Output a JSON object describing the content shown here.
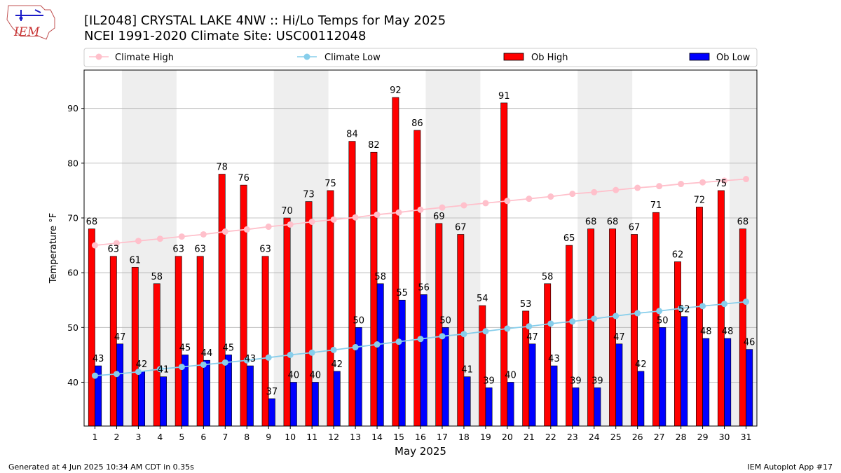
{
  "header": {
    "logo_text": "IEM",
    "title_line1": "[IL2048] CRYSTAL LAKE 4NW :: Hi/Lo Temps for May 2025",
    "title_line2": "NCEI 1991-2020 Climate Site: USC00112048"
  },
  "legend": {
    "climate_high": "Climate High",
    "climate_low": "Climate Low",
    "ob_high": "Ob High",
    "ob_low": "Ob Low"
  },
  "footer": {
    "generated": "Generated at 4 Jun 2025 10:34 AM CDT in 0.35s",
    "app": "IEM Autoplot App #17"
  },
  "colors": {
    "ob_high": "#ff0000",
    "ob_low": "#0000ff",
    "climate_high": "#ffc0cb",
    "climate_low": "#87ceeb",
    "weekend_shade": "#eeeeee",
    "grid": "#b0b0b0"
  },
  "chart_data": {
    "type": "bar",
    "xlabel": "May 2025",
    "ylabel": "Temperature °F",
    "ylim": [
      32,
      97
    ],
    "yticks": [
      40,
      50,
      60,
      70,
      80,
      90
    ],
    "grid": "horizontal",
    "legend_position": "top",
    "shaded_days": [
      3,
      4,
      10,
      11,
      17,
      18,
      24,
      25,
      31
    ],
    "categories": [
      "1",
      "2",
      "3",
      "4",
      "5",
      "6",
      "7",
      "8",
      "9",
      "10",
      "11",
      "12",
      "13",
      "14",
      "15",
      "16",
      "17",
      "18",
      "19",
      "20",
      "21",
      "22",
      "23",
      "24",
      "25",
      "26",
      "27",
      "28",
      "29",
      "30",
      "31"
    ],
    "series": [
      {
        "name": "Ob High",
        "kind": "bar",
        "values": [
          68,
          63,
          61,
          58,
          63,
          63,
          78,
          76,
          63,
          70,
          73,
          75,
          84,
          82,
          92,
          86,
          69,
          67,
          54,
          91,
          53,
          58,
          65,
          68,
          68,
          67,
          71,
          62,
          72,
          75,
          68
        ]
      },
      {
        "name": "Ob Low",
        "kind": "bar",
        "values": [
          43,
          47,
          42,
          41,
          45,
          44,
          45,
          43,
          37,
          40,
          40,
          42,
          50,
          58,
          55,
          56,
          50,
          41,
          39,
          40,
          47,
          43,
          39,
          39,
          47,
          42,
          50,
          52,
          48,
          48,
          46
        ]
      },
      {
        "name": "Climate High",
        "kind": "line",
        "values": [
          65.0,
          65.4,
          65.8,
          66.2,
          66.6,
          67.0,
          67.5,
          67.9,
          68.4,
          68.8,
          69.3,
          69.7,
          70.1,
          70.6,
          71.0,
          71.5,
          71.9,
          72.3,
          72.7,
          73.1,
          73.5,
          73.9,
          74.4,
          74.7,
          75.1,
          75.5,
          75.8,
          76.2,
          76.5,
          76.8,
          77.1
        ]
      },
      {
        "name": "Climate Low",
        "kind": "line",
        "values": [
          41.2,
          41.5,
          41.9,
          42.4,
          42.8,
          43.2,
          43.6,
          44.0,
          44.5,
          45.0,
          45.4,
          45.9,
          46.4,
          46.9,
          47.4,
          47.9,
          48.4,
          48.8,
          49.3,
          49.8,
          50.2,
          50.7,
          51.1,
          51.6,
          52.1,
          52.6,
          53.0,
          53.5,
          53.9,
          54.3,
          54.7
        ]
      }
    ]
  }
}
